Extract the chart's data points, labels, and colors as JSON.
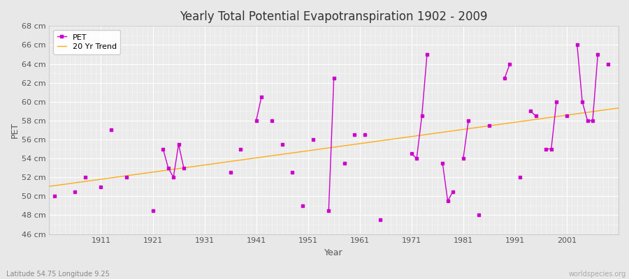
{
  "title": "Yearly Total Potential Evapotranspiration 1902 - 2009",
  "xlabel": "Year",
  "ylabel": "PET",
  "subtitle": "Latitude 54.75 Longitude 9.25",
  "watermark": "worldspecies.org",
  "ylim": [
    46,
    68
  ],
  "yticks": [
    46,
    48,
    50,
    52,
    54,
    56,
    58,
    60,
    62,
    64,
    66,
    68
  ],
  "pet_color": "#cc00cc",
  "trend_color": "#ffa500",
  "bg_color": "#e8e8e8",
  "plot_bg_color": "#ebebeb",
  "grid_color": "#ffffff",
  "xlim": [
    1901,
    2011
  ],
  "xticks": [
    1911,
    1921,
    1931,
    1941,
    1951,
    1961,
    1971,
    1981,
    1991,
    2001
  ],
  "years": [
    1902,
    1906,
    1908,
    1911,
    1913,
    1916,
    1921,
    1923,
    1924,
    1925,
    1926,
    1927,
    1936,
    1938,
    1941,
    1942,
    1944,
    1946,
    1948,
    1950,
    1952,
    1955,
    1956,
    1958,
    1960,
    1962,
    1965,
    1971,
    1972,
    1973,
    1974,
    1977,
    1978,
    1979,
    1981,
    1982,
    1984,
    1986,
    1989,
    1990,
    1992,
    1994,
    1995,
    1997,
    1998,
    1999,
    2001,
    2003,
    2004,
    2005,
    2006,
    2007,
    2009
  ],
  "pet_values": [
    50.0,
    50.5,
    52.0,
    51.0,
    57.0,
    52.0,
    48.5,
    55.0,
    53.0,
    52.0,
    55.5,
    53.0,
    52.5,
    55.0,
    58.0,
    60.5,
    58.0,
    55.5,
    52.5,
    49.0,
    56.0,
    48.5,
    62.5,
    53.5,
    56.5,
    56.5,
    47.5,
    54.5,
    54.0,
    58.5,
    65.0,
    53.5,
    49.5,
    50.5,
    54.0,
    58.0,
    48.0,
    57.5,
    62.5,
    64.0,
    52.0,
    59.0,
    58.5,
    55.0,
    55.0,
    60.0,
    58.5,
    66.0,
    60.0,
    58.0,
    58.0,
    65.0,
    64.0
  ],
  "all_years": [
    1902,
    1903,
    1904,
    1905,
    1906,
    1907,
    1908,
    1909,
    1910,
    1911,
    1912,
    1913,
    1914,
    1915,
    1916,
    1917,
    1918,
    1919,
    1920,
    1921,
    1922,
    1923,
    1924,
    1925,
    1926,
    1927,
    1928,
    1929,
    1930,
    1931,
    1932,
    1933,
    1934,
    1935,
    1936,
    1937,
    1938,
    1939,
    1940,
    1941,
    1942,
    1943,
    1944,
    1945,
    1946,
    1947,
    1948,
    1949,
    1950,
    1951,
    1952,
    1953,
    1954,
    1955,
    1956,
    1957,
    1958,
    1959,
    1960,
    1961,
    1962,
    1963,
    1964,
    1965,
    1966,
    1967,
    1968,
    1969,
    1970,
    1971,
    1972,
    1973,
    1974,
    1975,
    1976,
    1977,
    1978,
    1979,
    1980,
    1981,
    1982,
    1983,
    1984,
    1985,
    1986,
    1987,
    1988,
    1989,
    1990,
    1991,
    1992,
    1993,
    1994,
    1995,
    1996,
    1997,
    1998,
    1999,
    2000,
    2001,
    2002,
    2003,
    2004,
    2005,
    2006,
    2007,
    2008,
    2009
  ]
}
